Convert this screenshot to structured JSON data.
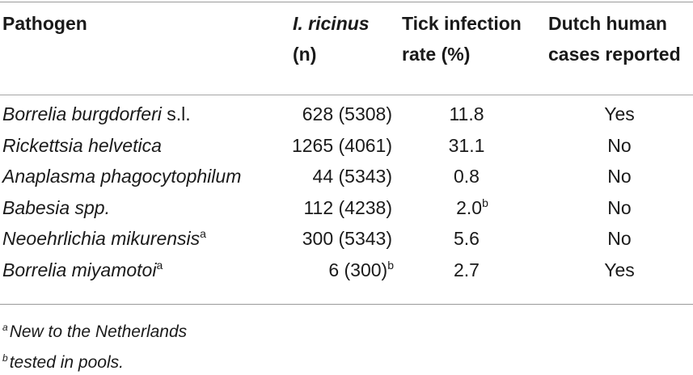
{
  "table": {
    "headers": {
      "pathogen": "Pathogen",
      "ricinus_line1": "I. ricinus",
      "ricinus_line2": "(n)",
      "rate_line1": "Tick infection",
      "rate_line2": "rate (%)",
      "cases_line1": "Dutch human",
      "cases_line2": "cases reported"
    },
    "rows": [
      {
        "pathogen_italic": "Borrelia burgdorferi",
        "pathogen_suffix": " s.l.",
        "pathogen_sup": "",
        "n": "628 (5308)",
        "n_sup": "",
        "rate": "11.8",
        "rate_sup": "",
        "cases": "Yes"
      },
      {
        "pathogen_italic": "Rickettsia helvetica",
        "pathogen_suffix": "",
        "pathogen_sup": "",
        "n": "1265 (4061)",
        "n_sup": "",
        "rate": "31.1",
        "rate_sup": "",
        "cases": "No"
      },
      {
        "pathogen_italic": "Anaplasma phagocytophilum",
        "pathogen_suffix": "",
        "pathogen_sup": "",
        "n": "44 (5343)",
        "n_sup": "",
        "rate": "0.8",
        "rate_sup": "",
        "cases": "No"
      },
      {
        "pathogen_italic": "Babesia spp.",
        "pathogen_suffix": "",
        "pathogen_sup": "",
        "n": "112 (4238)",
        "n_sup": "",
        "rate": "2.0",
        "rate_sup": "b",
        "cases": "No"
      },
      {
        "pathogen_italic": "Neoehrlichia mikurensis",
        "pathogen_suffix": "",
        "pathogen_sup": "a",
        "n": "300 (5343)",
        "n_sup": "",
        "rate": "5.6",
        "rate_sup": "",
        "cases": "No"
      },
      {
        "pathogen_italic": "Borrelia miyamotoi",
        "pathogen_suffix": "",
        "pathogen_sup": "a",
        "n": "6 (300)",
        "n_sup": "b",
        "rate": "2.7",
        "rate_sup": "",
        "cases": "Yes"
      }
    ],
    "footnotes": [
      {
        "mark": "a",
        "text": "New to the Netherlands"
      },
      {
        "mark": "b",
        "text": "tested in pools."
      }
    ]
  }
}
